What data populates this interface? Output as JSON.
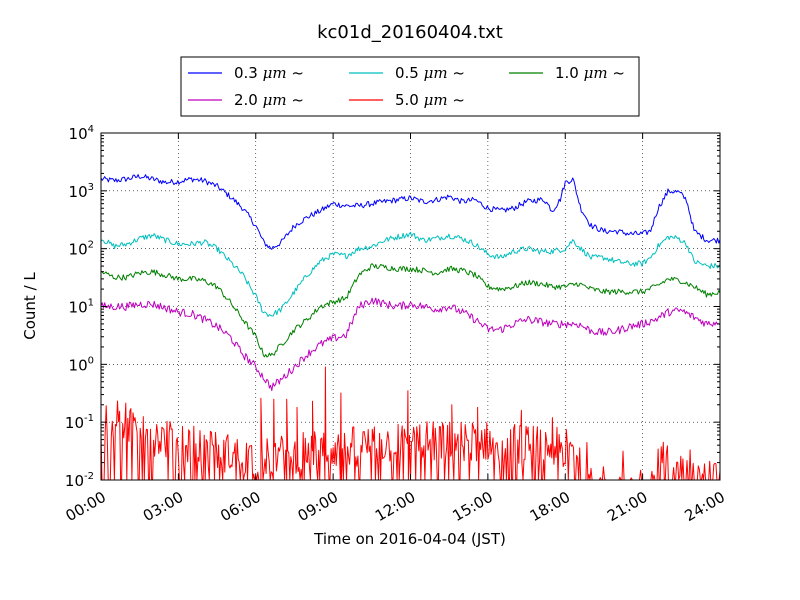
{
  "chart_data": {
    "type": "line",
    "title": "kc01d_20160404.txt",
    "xlabel": "Time on 2016-04-04 (JST)",
    "ylabel": "Count / L",
    "yscale": "log",
    "xlim": [
      0,
      24
    ],
    "ylim": [
      0.01,
      10000
    ],
    "grid": true,
    "legend_position": "top-center, above plot",
    "x_ticks": [
      {
        "value": 0,
        "label": "00:00"
      },
      {
        "value": 3,
        "label": "03:00"
      },
      {
        "value": 6,
        "label": "06:00"
      },
      {
        "value": 9,
        "label": "09:00"
      },
      {
        "value": 12,
        "label": "12:00"
      },
      {
        "value": 15,
        "label": "15:00"
      },
      {
        "value": 18,
        "label": "18:00"
      },
      {
        "value": 21,
        "label": "21:00"
      },
      {
        "value": 24,
        "label": "24:00"
      }
    ],
    "y_ticks": [
      {
        "value": 0.01,
        "base": "10",
        "exp": "-2"
      },
      {
        "value": 0.1,
        "base": "10",
        "exp": "-1"
      },
      {
        "value": 1,
        "base": "10",
        "exp": "0"
      },
      {
        "value": 10,
        "base": "10",
        "exp": "1"
      },
      {
        "value": 100,
        "base": "10",
        "exp": "2"
      },
      {
        "value": 1000,
        "base": "10",
        "exp": "3"
      },
      {
        "value": 10000,
        "base": "10",
        "exp": "4"
      }
    ],
    "series": [
      {
        "name": "0.3 μm ~",
        "legend_size": "0.3 ",
        "legend_unit": "μm",
        "legend_tail": " ~",
        "color": "#0000ff",
        "noise": 0.05,
        "x": [
          0.0,
          0.5,
          1.0,
          1.5,
          2.0,
          2.5,
          3.0,
          3.5,
          4.0,
          4.5,
          5.0,
          5.5,
          6.0,
          6.3,
          6.6,
          7.0,
          7.5,
          8.0,
          8.5,
          9.0,
          9.5,
          10.0,
          10.5,
          11.0,
          11.5,
          12.0,
          12.5,
          13.0,
          13.5,
          14.0,
          14.5,
          15.0,
          15.5,
          16.0,
          16.5,
          17.0,
          17.2,
          17.5,
          17.8,
          18.0,
          18.3,
          18.6,
          19.0,
          19.5,
          20.0,
          20.5,
          21.0,
          21.3,
          21.6,
          22.0,
          22.4,
          22.7,
          23.0,
          23.5,
          24.0
        ],
        "y": [
          1600,
          1500,
          1600,
          1800,
          1600,
          1400,
          1450,
          1600,
          1500,
          1200,
          800,
          500,
          250,
          130,
          100,
          130,
          250,
          350,
          450,
          600,
          550,
          550,
          600,
          650,
          700,
          750,
          650,
          700,
          800,
          650,
          700,
          500,
          450,
          500,
          650,
          700,
          700,
          450,
          700,
          1400,
          1600,
          500,
          250,
          200,
          200,
          180,
          180,
          200,
          500,
          1000,
          950,
          700,
          200,
          140,
          140
        ]
      },
      {
        "name": "0.5 μm ~",
        "legend_size": "0.5 ",
        "legend_unit": "μm",
        "legend_tail": " ~",
        "color": "#00bfbf",
        "noise": 0.05,
        "x": [
          0.0,
          0.5,
          1.0,
          1.5,
          2.0,
          2.5,
          3.0,
          3.5,
          4.0,
          4.5,
          5.0,
          5.5,
          6.0,
          6.3,
          6.6,
          7.0,
          7.5,
          8.0,
          8.5,
          9.0,
          9.5,
          10.0,
          10.5,
          11.0,
          11.5,
          12.0,
          12.5,
          13.0,
          13.5,
          14.0,
          14.5,
          15.0,
          15.5,
          16.0,
          16.5,
          17.0,
          17.5,
          18.0,
          18.3,
          18.6,
          19.0,
          19.5,
          20.0,
          20.5,
          21.0,
          21.3,
          21.6,
          22.0,
          22.4,
          22.7,
          23.0,
          23.5,
          24.0
        ],
        "y": [
          150,
          110,
          120,
          150,
          170,
          140,
          120,
          120,
          130,
          100,
          60,
          35,
          15,
          8,
          7,
          9,
          18,
          35,
          60,
          80,
          75,
          100,
          110,
          140,
          160,
          180,
          140,
          150,
          170,
          150,
          120,
          80,
          70,
          90,
          100,
          90,
          90,
          100,
          140,
          100,
          70,
          70,
          60,
          55,
          55,
          70,
          110,
          160,
          150,
          120,
          60,
          50,
          50
        ]
      },
      {
        "name": "1.0 μm ~",
        "legend_size": "1.0 ",
        "legend_unit": "μm",
        "legend_tail": " ~",
        "color": "#008000",
        "noise": 0.05,
        "x": [
          0.0,
          0.5,
          1.0,
          1.5,
          2.0,
          2.5,
          3.0,
          3.5,
          4.0,
          4.5,
          5.0,
          5.5,
          6.0,
          6.3,
          6.6,
          7.0,
          7.5,
          8.0,
          8.5,
          9.0,
          9.5,
          10.0,
          10.5,
          11.0,
          11.5,
          12.0,
          12.5,
          13.0,
          13.5,
          14.0,
          14.5,
          15.0,
          15.5,
          16.0,
          16.5,
          17.0,
          17.5,
          18.0,
          18.5,
          19.0,
          19.5,
          20.0,
          20.5,
          21.0,
          21.5,
          22.0,
          22.5,
          23.0,
          23.5,
          24.0
        ],
        "y": [
          40,
          32,
          32,
          38,
          40,
          35,
          30,
          30,
          28,
          22,
          12,
          6,
          3,
          1.5,
          1.4,
          2.2,
          4,
          6,
          10,
          12,
          14,
          35,
          50,
          48,
          45,
          45,
          42,
          38,
          45,
          42,
          35,
          22,
          20,
          22,
          26,
          25,
          22,
          22,
          25,
          20,
          18,
          18,
          18,
          18,
          22,
          30,
          28,
          22,
          16,
          18
        ]
      },
      {
        "name": "2.0 μm ~",
        "legend_size": "2.0 ",
        "legend_unit": "μm",
        "legend_tail": " ~",
        "color": "#bf00bf",
        "noise": 0.07,
        "x": [
          0.0,
          0.5,
          1.0,
          1.5,
          2.0,
          2.5,
          3.0,
          3.5,
          4.0,
          4.5,
          5.0,
          5.5,
          6.0,
          6.3,
          6.6,
          7.0,
          7.5,
          8.0,
          8.5,
          9.0,
          9.5,
          10.0,
          10.5,
          11.0,
          11.5,
          12.0,
          12.5,
          13.0,
          13.5,
          14.0,
          14.5,
          15.0,
          15.5,
          16.0,
          16.5,
          17.0,
          17.5,
          18.0,
          18.5,
          19.0,
          19.5,
          20.0,
          20.5,
          21.0,
          21.5,
          22.0,
          22.5,
          23.0,
          23.5,
          24.0
        ],
        "y": [
          10,
          10,
          10,
          11,
          11,
          9.5,
          8,
          7.5,
          6,
          4.5,
          3,
          1.5,
          0.9,
          0.6,
          0.4,
          0.55,
          0.9,
          1.5,
          2.2,
          2.8,
          3.2,
          10,
          13,
          11,
          10,
          11,
          10,
          9,
          10,
          8,
          6,
          4,
          4,
          5,
          6,
          5.5,
          5,
          5,
          5,
          3.8,
          3.5,
          3.8,
          4.5,
          5,
          6,
          8,
          8.5,
          6.5,
          5,
          5.5
        ]
      },
      {
        "name": "5.0 μm ~",
        "legend_size": "5.0 ",
        "legend_unit": "μm",
        "legend_tail": " ~",
        "color": "#ff0000",
        "kind": "sparse",
        "baseline": [
          [
            0.0,
            0.1
          ],
          [
            1.5,
            0.08
          ],
          [
            2.0,
            0.05
          ],
          [
            4.0,
            0.03
          ],
          [
            6.0,
            0.02
          ],
          [
            9.0,
            0.03
          ],
          [
            12.0,
            0.04
          ],
          [
            15.0,
            0.04
          ],
          [
            18.0,
            0.03
          ],
          [
            19.5,
            0.02
          ],
          [
            24.0,
            0.015
          ]
        ],
        "spikes": [
          [
            6.2,
            0.26
          ],
          [
            6.7,
            0.25
          ],
          [
            7.2,
            0.25
          ],
          [
            7.6,
            0.18
          ],
          [
            8.2,
            0.23
          ],
          [
            8.7,
            0.9
          ],
          [
            9.3,
            0.32
          ],
          [
            11.9,
            0.35
          ],
          [
            13.6,
            0.2
          ],
          [
            14.6,
            0.18
          ],
          [
            16.3,
            0.16
          ],
          [
            17.5,
            0.12
          ]
        ],
        "gaps": [
          [
            19.6,
            20.0
          ],
          [
            20.6,
            20.9
          ]
        ]
      }
    ]
  }
}
